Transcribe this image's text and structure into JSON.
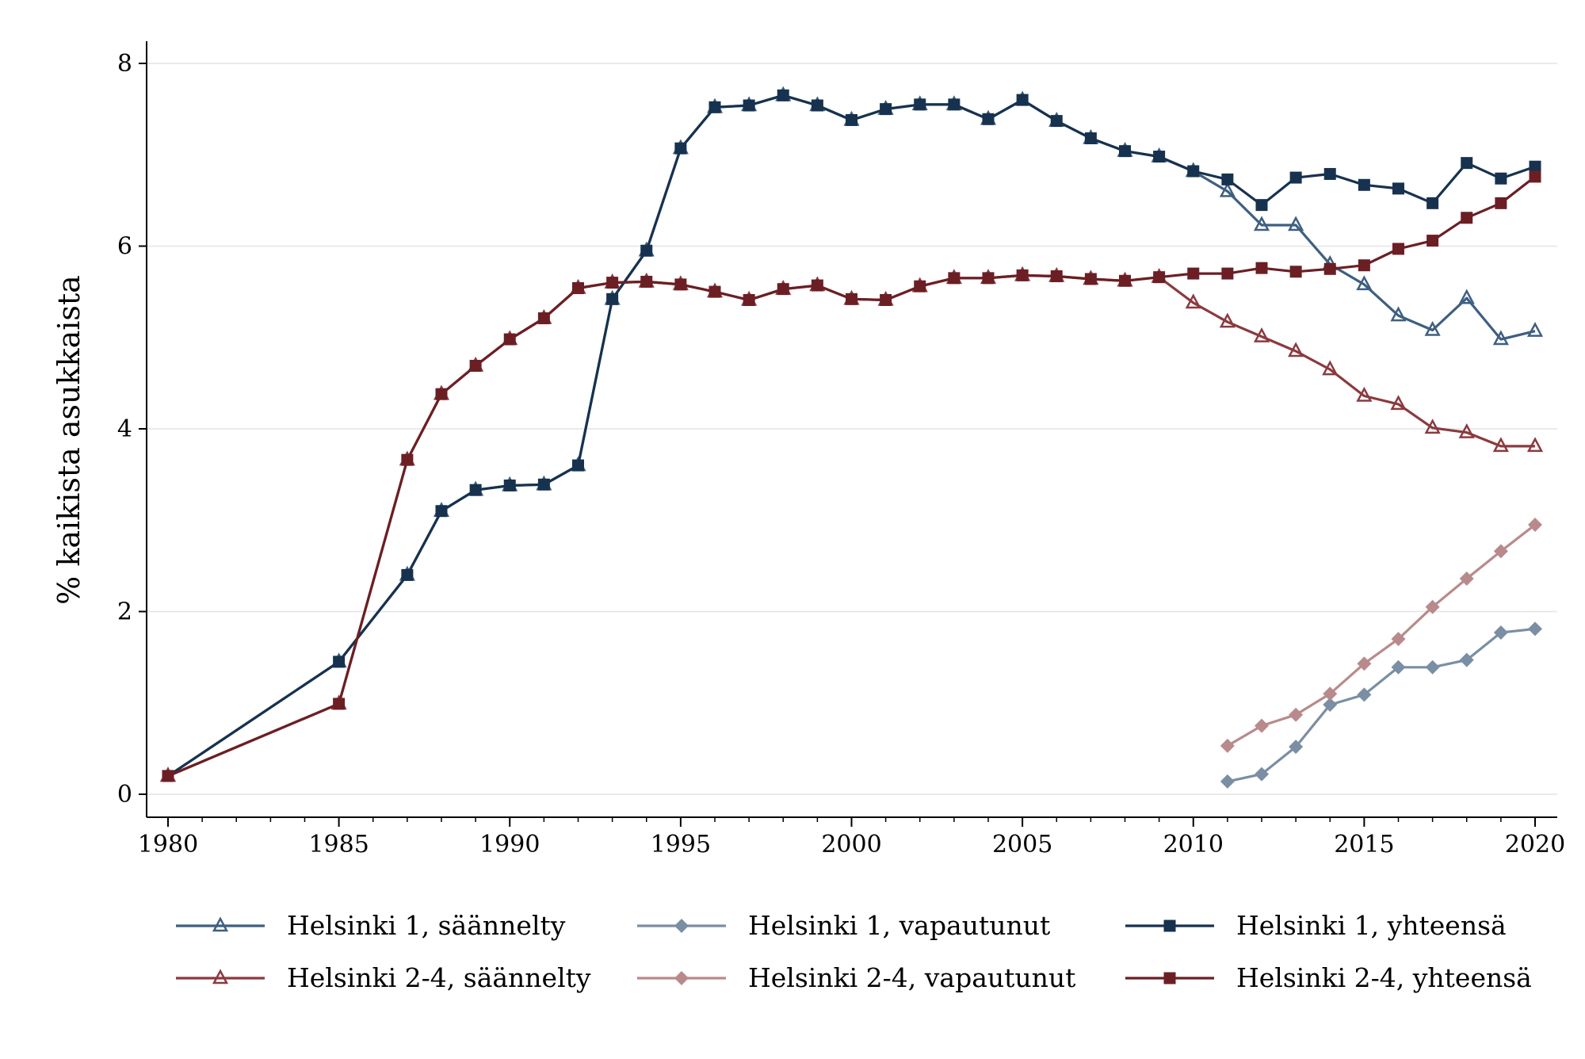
{
  "chart_data": {
    "type": "line",
    "title": "",
    "xlabel": "",
    "ylabel": "% kaikista asukkaista",
    "xlim": [
      1980,
      2020
    ],
    "ylim": [
      0,
      8
    ],
    "xticks": [
      1980,
      1985,
      1990,
      1995,
      2000,
      2005,
      2010,
      2015,
      2020
    ],
    "yticks": [
      0,
      2,
      4,
      6,
      8
    ],
    "grid": "horizontal",
    "legend_placement": "bottom",
    "series": [
      {
        "name": "Helsinki 1, säännelty",
        "color": "#3e5f80",
        "marker": "triangle-open",
        "x": [
          1980,
          1985,
          1987,
          1988,
          1989,
          1990,
          1991,
          1992,
          1993,
          1994,
          1995,
          1996,
          1997,
          1998,
          1999,
          2000,
          2001,
          2002,
          2003,
          2004,
          2005,
          2006,
          2007,
          2008,
          2009,
          2010,
          2011,
          2012,
          2013,
          2014,
          2015,
          2016,
          2017,
          2018,
          2019,
          2020
        ],
        "values": [
          0.2,
          1.45,
          2.4,
          3.1,
          3.33,
          3.38,
          3.39,
          3.6,
          5.42,
          5.95,
          7.07,
          7.52,
          7.54,
          7.65,
          7.54,
          7.38,
          7.5,
          7.55,
          7.55,
          7.39,
          7.6,
          7.37,
          7.18,
          7.04,
          6.98,
          6.82,
          6.6,
          6.23,
          6.23,
          5.8,
          5.58,
          5.24,
          5.08,
          5.43,
          4.98,
          5.07
        ]
      },
      {
        "name": "Helsinki 1, vapautunut",
        "color": "#7a8ea4",
        "marker": "diamond",
        "x": [
          2011,
          2012,
          2013,
          2014,
          2015,
          2016,
          2017,
          2018,
          2019,
          2020
        ],
        "values": [
          0.14,
          0.22,
          0.52,
          0.98,
          1.09,
          1.39,
          1.39,
          1.47,
          1.77,
          1.81
        ]
      },
      {
        "name": "Helsinki 1, yhteensä",
        "color": "#17324f",
        "marker": "square",
        "x": [
          1980,
          1985,
          1987,
          1988,
          1989,
          1990,
          1991,
          1992,
          1993,
          1994,
          1995,
          1996,
          1997,
          1998,
          1999,
          2000,
          2001,
          2002,
          2003,
          2004,
          2005,
          2006,
          2007,
          2008,
          2009,
          2010,
          2011,
          2012,
          2013,
          2014,
          2015,
          2016,
          2017,
          2018,
          2019,
          2020
        ],
        "values": [
          0.2,
          1.45,
          2.4,
          3.1,
          3.33,
          3.38,
          3.39,
          3.6,
          5.42,
          5.95,
          7.07,
          7.52,
          7.54,
          7.65,
          7.54,
          7.38,
          7.5,
          7.55,
          7.55,
          7.39,
          7.6,
          7.37,
          7.18,
          7.04,
          6.98,
          6.82,
          6.73,
          6.45,
          6.75,
          6.79,
          6.67,
          6.63,
          6.47,
          6.91,
          6.74,
          6.87
        ]
      },
      {
        "name": "Helsinki 2-4, säännelty",
        "color": "#8b3a3f",
        "marker": "triangle-open",
        "x": [
          1980,
          1985,
          1987,
          1988,
          1989,
          1990,
          1991,
          1992,
          1993,
          1994,
          1995,
          1996,
          1997,
          1998,
          1999,
          2000,
          2001,
          2002,
          2003,
          2004,
          2005,
          2006,
          2007,
          2008,
          2009,
          2010,
          2011,
          2012,
          2013,
          2014,
          2015,
          2016,
          2017,
          2018,
          2019,
          2020
        ],
        "values": [
          0.2,
          0.99,
          3.66,
          4.38,
          4.69,
          4.98,
          5.21,
          5.54,
          5.6,
          5.61,
          5.58,
          5.5,
          5.41,
          5.53,
          5.57,
          5.42,
          5.41,
          5.56,
          5.65,
          5.65,
          5.68,
          5.67,
          5.64,
          5.62,
          5.66,
          5.38,
          5.17,
          5.01,
          4.85,
          4.65,
          4.36,
          4.27,
          4.01,
          3.96,
          3.81,
          3.81
        ]
      },
      {
        "name": "Helsinki 2-4, vapautunut",
        "color": "#b98a8c",
        "marker": "diamond",
        "x": [
          2011,
          2012,
          2013,
          2014,
          2015,
          2016,
          2017,
          2018,
          2019,
          2020
        ],
        "values": [
          0.53,
          0.75,
          0.87,
          1.1,
          1.43,
          1.7,
          2.05,
          2.36,
          2.66,
          2.95
        ]
      },
      {
        "name": "Helsinki 2-4, yhteensä",
        "color": "#6b1f24",
        "marker": "square",
        "x": [
          1980,
          1985,
          1987,
          1988,
          1989,
          1990,
          1991,
          1992,
          1993,
          1994,
          1995,
          1996,
          1997,
          1998,
          1999,
          2000,
          2001,
          2002,
          2003,
          2004,
          2005,
          2006,
          2007,
          2008,
          2009,
          2010,
          2011,
          2012,
          2013,
          2014,
          2015,
          2016,
          2017,
          2018,
          2019,
          2020
        ],
        "values": [
          0.2,
          0.99,
          3.66,
          4.38,
          4.69,
          4.98,
          5.21,
          5.54,
          5.6,
          5.61,
          5.58,
          5.5,
          5.41,
          5.53,
          5.57,
          5.42,
          5.41,
          5.56,
          5.65,
          5.65,
          5.68,
          5.67,
          5.64,
          5.62,
          5.66,
          5.7,
          5.7,
          5.76,
          5.72,
          5.75,
          5.79,
          5.97,
          6.06,
          6.31,
          6.47,
          6.76
        ]
      }
    ]
  }
}
